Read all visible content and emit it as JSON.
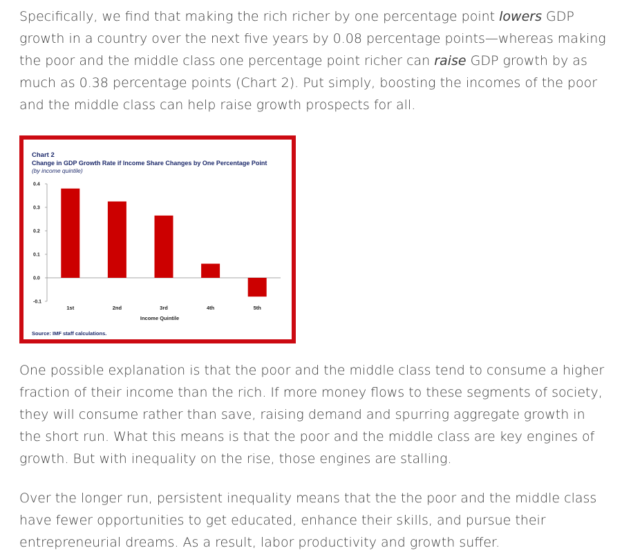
{
  "paragraph1": {
    "t1": "Specifically, we find that making the rich richer by one percentage point ",
    "em1": "lowers",
    "t2": " GDP growth in a country over the next five years by 0.08 percentage points—whereas making the poor and the middle class one percentage point richer can ",
    "em2": "raise",
    "t3": " GDP growth by as much as 0.38 percentage points (Chart 2).  Put simply, boosting the incomes of the poor and the middle class can help raise growth prospects for all."
  },
  "paragraph2": "One possible explanation is that the poor and the middle class tend to consume a higher fraction of their income than the rich. If more money flows to these segments of society, they will consume rather than save, raising demand and spurring aggregate growth in the short run. What this means is that the poor and the middle class are key engines of growth. But with inequality on the rise, those engines are stalling.",
  "paragraph3": "Over the longer run, persistent inequality means that the the poor and the middle class have fewer opportunities to get educated, enhance their skills, and pursue their entrepreneurial dreams.  As a result, labor productivity and growth suffer.",
  "chart_data": {
    "type": "bar",
    "label": "Chart 2",
    "title": "Change in GDP Growth Rate if Income Share Changes by One Percentage Point",
    "subtitle": "(by income quintile)",
    "categories": [
      "1st",
      "2nd",
      "3rd",
      "4th",
      "5th"
    ],
    "values": [
      0.38,
      0.325,
      0.265,
      0.06,
      -0.08
    ],
    "xlabel": "Income Quintile",
    "ylabel": "",
    "ylim": [
      -0.1,
      0.4
    ],
    "yticks": [
      "0.4",
      "0.3",
      "0.2",
      "0.1",
      "0.0",
      "-0.1"
    ],
    "source": "Source: IMF staff calculations.",
    "bar_color": "#cc0000",
    "frame_color": "#cc0a12",
    "grid": false
  }
}
